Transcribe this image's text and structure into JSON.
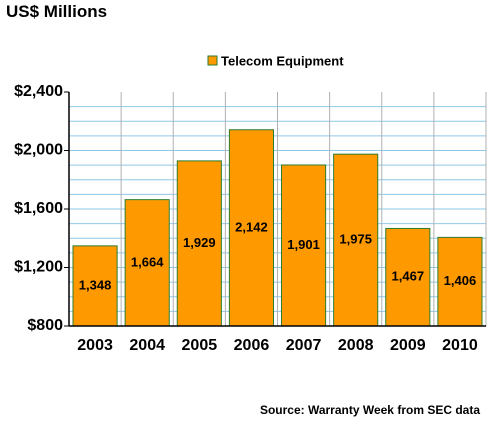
{
  "chart_data": {
    "type": "bar",
    "title": "US$ Millions",
    "categories": [
      "2003",
      "2004",
      "2005",
      "2006",
      "2007",
      "2008",
      "2009",
      "2010"
    ],
    "series": [
      {
        "name": "Telecom Equipment",
        "values": [
          1348,
          1664,
          1929,
          2142,
          1901,
          1975,
          1467,
          1406
        ],
        "labels": [
          "1,348",
          "1,664",
          "1,929",
          "2,142",
          "1,901",
          "1,975",
          "1,467",
          "1,406"
        ]
      }
    ],
    "y_ticks": [
      {
        "value": 800,
        "label": "$800"
      },
      {
        "value": 1200,
        "label": "$1,200"
      },
      {
        "value": 1600,
        "label": "$1,600"
      },
      {
        "value": 2000,
        "label": "$2,000"
      },
      {
        "value": 2400,
        "label": "$2,400"
      }
    ],
    "ylim": [
      800,
      2400
    ],
    "minor_grid_step": 100,
    "grid": true,
    "legend_position": "top-center",
    "source": "Source: Warranty Week from SEC data",
    "colors": {
      "bar": "#FF9900",
      "bar_edge": "#2E7D2E",
      "grid": "#8EC9E8",
      "axis": "#000000"
    }
  }
}
